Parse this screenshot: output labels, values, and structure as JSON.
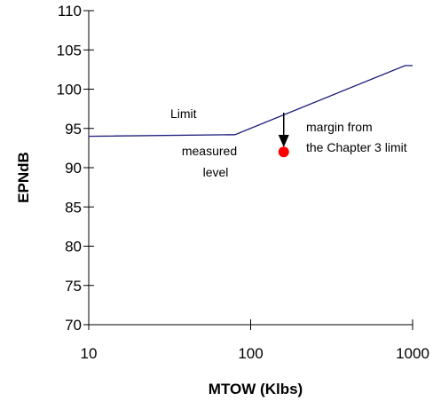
{
  "chart_data": {
    "type": "line",
    "xlabel": "MTOW  (Klbs)",
    "ylabel": "EPNdB",
    "x_scale": "log",
    "xlim": [
      10,
      1000
    ],
    "ylim": [
      70,
      110
    ],
    "x_ticks": [
      10,
      100,
      1000
    ],
    "x_tick_labels": [
      "10",
      "100",
      "1000"
    ],
    "y_ticks": [
      70,
      75,
      80,
      85,
      90,
      95,
      100,
      105,
      110
    ],
    "y_tick_labels": [
      "70",
      "75",
      "80",
      "85",
      "90",
      "95",
      "100",
      "105",
      "110"
    ],
    "grid": false,
    "series": [
      {
        "name": "Limit",
        "color": "#1a1a7a",
        "x": [
          10,
          80,
          900,
          1000
        ],
        "y": [
          94,
          94.2,
          103,
          103
        ]
      }
    ],
    "points": [
      {
        "label": "measured level",
        "x": 160,
        "y": 92,
        "color": "#ff0000"
      }
    ],
    "annotations": {
      "limit_label": "Limit",
      "measured_line1": "measured",
      "measured_line2": "level",
      "margin_line1": "margin from",
      "margin_line2": "the Chapter 3 limit",
      "arrow": {
        "x": 160,
        "y_from": 97,
        "y_to": 92.6
      }
    }
  }
}
